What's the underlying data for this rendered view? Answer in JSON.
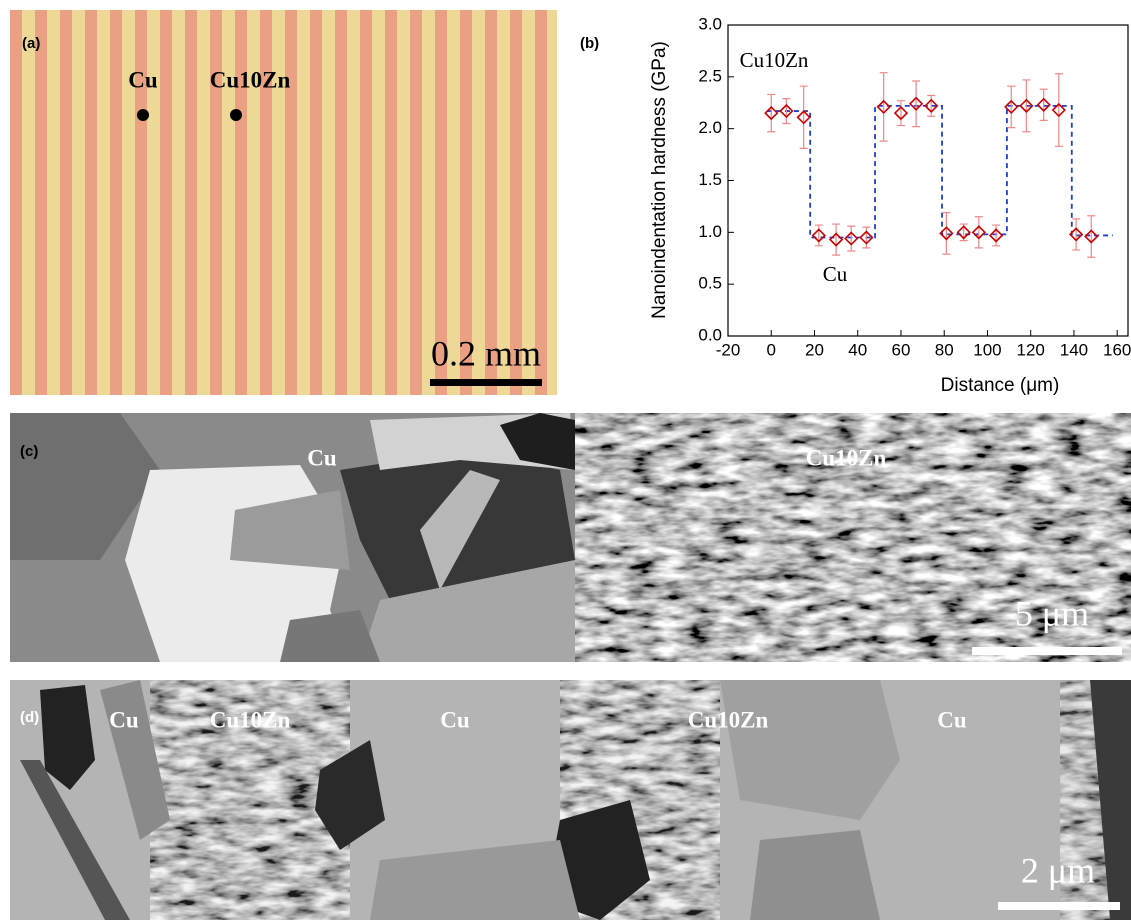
{
  "panels": {
    "a": {
      "label": "(a)",
      "annotations": [
        "Cu",
        "Cu10Zn"
      ],
      "scale_bar": "0.2 mm"
    },
    "b": {
      "label": "(b)"
    },
    "c": {
      "label": "(c)",
      "annotations": [
        "Cu",
        "Cu10Zn"
      ],
      "scale_bar": "5 μm"
    },
    "d": {
      "label": "(d)",
      "annotations": [
        "Cu",
        "Cu10Zn",
        "Cu",
        "Cu10Zn",
        "Cu"
      ],
      "scale_bar": "2 μm"
    }
  },
  "chart_data": {
    "type": "scatter",
    "x_label": "Distance (μm)",
    "y_label": "Nanoindentation hardness (GPa)",
    "annotations": [
      "Cu10Zn",
      "Cu"
    ],
    "xlim": [
      -20,
      165
    ],
    "ylim": [
      0,
      3
    ],
    "xticks": [
      -20,
      0,
      20,
      40,
      60,
      80,
      100,
      120,
      140,
      160
    ],
    "yticks": [
      {
        "value": 0,
        "label": "0.0"
      },
      0.5,
      {
        "value": 1,
        "label": "1.0"
      },
      1.5,
      {
        "value": 2,
        "label": "2.0"
      },
      2.5,
      {
        "value": 3,
        "label": "3.0"
      }
    ],
    "series": [
      {
        "color": "#cc0000",
        "error_color": "#ee8888",
        "x": [
          0,
          7,
          15,
          22,
          30,
          37,
          44,
          52,
          60,
          67,
          74,
          81,
          89,
          96,
          104,
          111,
          118,
          126,
          133,
          141,
          148
        ],
        "values": [
          2.15,
          2.17,
          2.11,
          0.97,
          0.93,
          0.94,
          0.95,
          2.21,
          2.15,
          2.24,
          2.22,
          0.99,
          1.0,
          1.0,
          0.97,
          2.21,
          2.22,
          2.23,
          2.18,
          0.98,
          0.96
        ],
        "errors": [
          0.18,
          0.12,
          0.3,
          0.1,
          0.15,
          0.12,
          0.1,
          0.33,
          0.12,
          0.22,
          0.1,
          0.2,
          0.08,
          0.15,
          0.1,
          0.2,
          0.25,
          0.15,
          0.35,
          0.15,
          0.2
        ]
      },
      {
        "color": "#1f3fcc",
        "style": "dashed",
        "x": [
          -2,
          18,
          18,
          48,
          48,
          79,
          79,
          109,
          109,
          139,
          139,
          158
        ],
        "values": [
          2.17,
          2.17,
          0.95,
          0.95,
          2.22,
          2.22,
          0.98,
          0.98,
          2.22,
          2.22,
          0.97,
          0.97
        ]
      }
    ]
  }
}
